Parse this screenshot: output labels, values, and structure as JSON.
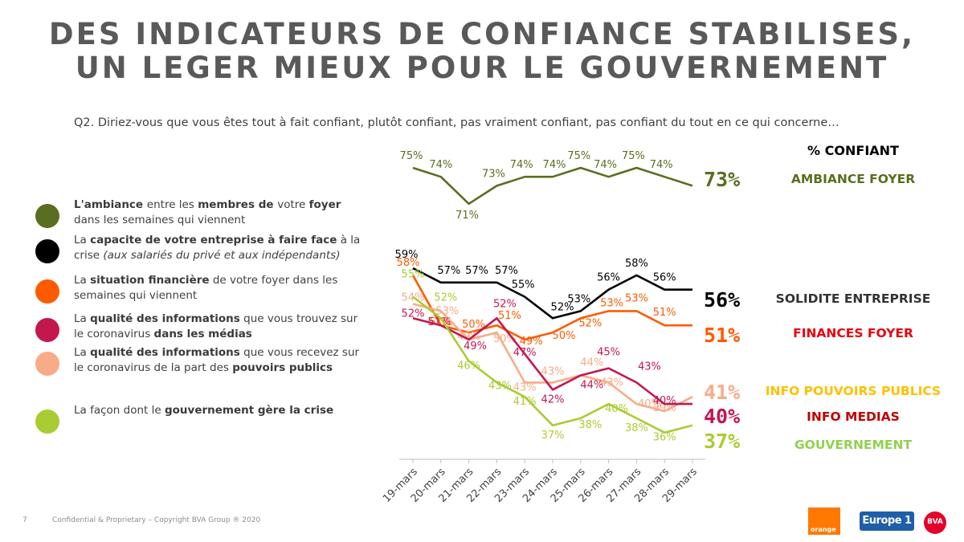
{
  "title_line1": "DES INDICATEURS DE CONFIANCE STABILISES,",
  "title_line2": "UN LEGER MIEUX POUR LE GOUVERNEMENT",
  "question": "Q2. Diriez-vous que vous êtes tout à fait confiant, plutôt confiant, pas vraiment confiant, pas confiant du tout en ce qui concerne…",
  "legend": [
    {
      "color": "#5a6e1f",
      "parts": [
        {
          "t": "L'ambiance ",
          "b": true
        },
        {
          "t": "entre les ",
          "b": false
        },
        {
          "t": "membres de ",
          "b": true
        },
        {
          "t": "votre ",
          "b": false
        },
        {
          "t": "foyer",
          "b": true
        },
        {
          "t": " dans les semaines qui viennent",
          "b": false
        }
      ]
    },
    {
      "color": "#000000",
      "parts": [
        {
          "t": "La ",
          "b": false
        },
        {
          "t": "capacite de votre entreprise à faire face",
          "b": true
        },
        {
          "t": " à la crise ",
          "b": false
        },
        {
          "t": "(aux salariés du privé et aux indépendants)",
          "i": true
        }
      ]
    },
    {
      "color": "#ff5a00",
      "parts": [
        {
          "t": "La ",
          "b": false
        },
        {
          "t": "situation financière",
          "b": true
        },
        {
          "t": " de votre foyer dans les semaines qui viennent",
          "b": false
        }
      ]
    },
    {
      "color": "#c4174f",
      "parts": [
        {
          "t": "La ",
          "b": false
        },
        {
          "t": "qualité des informations",
          "b": true
        },
        {
          "t": " que vous trouvez sur le coronavirus ",
          "b": false
        },
        {
          "t": "dans les médias",
          "b": true
        }
      ]
    },
    {
      "color": "#f9ab88",
      "parts": [
        {
          "t": "La ",
          "b": false
        },
        {
          "t": "qualité des informations",
          "b": true
        },
        {
          "t": " que vous recevez sur le coronavirus de la part des ",
          "b": false
        },
        {
          "t": "pouvoirs publics",
          "b": true
        }
      ]
    },
    {
      "color": "#a9cc32",
      "parts": [
        {
          "t": "La façon dont le ",
          "b": false
        },
        {
          "t": "gouvernement gère la crise",
          "b": true
        }
      ]
    }
  ],
  "footer": {
    "page": "7",
    "text": "Confidential & Proprietary – Copyright BVA Group ® 2020",
    "logos": [
      "orange",
      "Europe 1",
      "BVA"
    ]
  },
  "chart_data": {
    "type": "line",
    "categories": [
      "19-mars",
      "20-mars",
      "21-mars",
      "22-mars",
      "23-mars",
      "24-mars",
      "25-mars",
      "26-mars",
      "27-mars",
      "28-mars",
      "29-mars"
    ],
    "header_label": "% CONFIANT",
    "series": [
      {
        "name": "AMBIANCE FOYER",
        "color": "#5a6e1f",
        "values": [
          75,
          74,
          71,
          73,
          74,
          74,
          75,
          74,
          75,
          74,
          73
        ],
        "last_label": "73%"
      },
      {
        "name": "SOLIDITE ENTREPRISE",
        "color": "#000000",
        "values": [
          59,
          57,
          57,
          57,
          55,
          52,
          53,
          56,
          58,
          56,
          56
        ],
        "last_label": "56%"
      },
      {
        "name": "FINANCES FOYER",
        "color": "#ff5a00",
        "values": [
          58,
          51,
          50,
          51,
          49,
          50,
          52,
          53,
          53,
          51,
          51
        ],
        "last_label": "51%"
      },
      {
        "name": "INFO POUVOIRS PUBLICS",
        "color": "#f9ab88",
        "values": [
          54,
          53,
          49,
          50,
          43,
          43,
          44,
          43,
          40,
          39,
          41
        ],
        "last_label": "41%"
      },
      {
        "name": "INFO MEDIAS",
        "color": "#c4174f",
        "values": [
          52,
          51,
          49,
          52,
          47,
          42,
          44,
          45,
          43,
          40,
          40
        ],
        "last_label": "40%"
      },
      {
        "name": "GOUVERNEMENT",
        "color": "#a9cc32",
        "values": [
          55,
          52,
          46,
          43,
          41,
          37,
          38,
          40,
          38,
          36,
          37
        ],
        "last_label": "37%"
      }
    ],
    "series_label_colors": [
      "#5a6e1f",
      "#333333",
      "#e8000e",
      "#ffc000",
      "#c00000",
      "#92d050"
    ],
    "legend": "right"
  }
}
